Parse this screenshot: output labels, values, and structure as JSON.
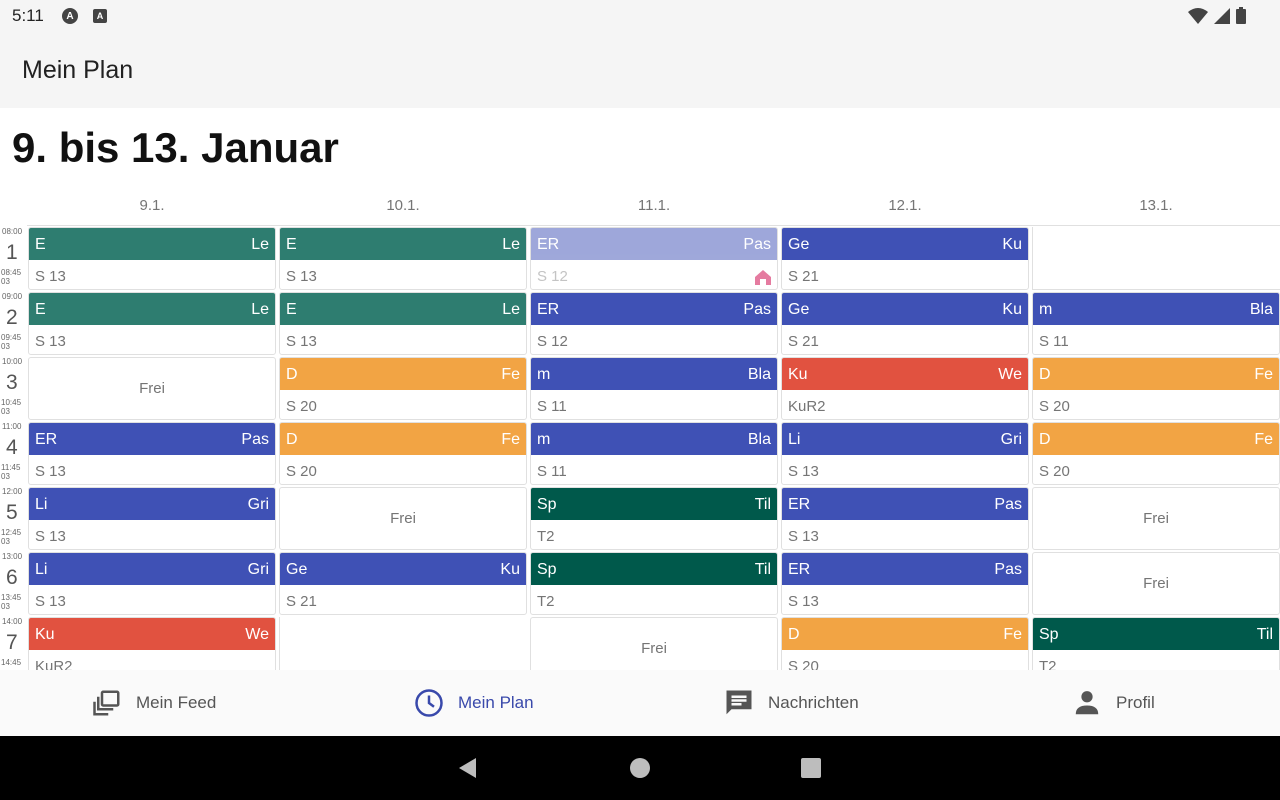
{
  "status_bar": {
    "time": "5:11",
    "notif_1": "A",
    "notif_2": "A"
  },
  "app_bar": {
    "title": "Mein Plan"
  },
  "week_title": "9. bis 13. Januar",
  "days": [
    "9.1.",
    "10.1.",
    "11.1.",
    "12.1.",
    "13.1."
  ],
  "periods": [
    {
      "num": "1",
      "start": "08:00",
      "end": "08:45",
      "end2": "03"
    },
    {
      "num": "2",
      "start": "09:00",
      "end": "09:45",
      "end2": "03"
    },
    {
      "num": "3",
      "start": "10:00",
      "end": "10:45",
      "end2": "03"
    },
    {
      "num": "4",
      "start": "11:00",
      "end": "11:45",
      "end2": "03"
    },
    {
      "num": "5",
      "start": "12:00",
      "end": "12:45",
      "end2": "03"
    },
    {
      "num": "6",
      "start": "13:00",
      "end": "13:45",
      "end2": "03"
    },
    {
      "num": "7",
      "start": "14:00",
      "end": "14:45",
      "end2": ""
    }
  ],
  "colors": {
    "teal": "#2e7d70",
    "indigo": "#3f51b5",
    "orange": "#f2a444",
    "red": "#e15240",
    "green": "#00594b",
    "flag": "#e57ba0"
  },
  "schedule": [
    [
      {
        "type": "lesson",
        "subject": "E",
        "teacher": "Le",
        "room": "S 13",
        "color": "teal"
      },
      {
        "type": "lesson",
        "subject": "E",
        "teacher": "Le",
        "room": "S 13",
        "color": "teal"
      },
      {
        "type": "frei",
        "label": "Frei"
      },
      {
        "type": "lesson",
        "subject": "ER",
        "teacher": "Pas",
        "room": "S 13",
        "color": "indigo"
      },
      {
        "type": "lesson",
        "subject": "Li",
        "teacher": "Gri",
        "room": "S 13",
        "color": "indigo"
      },
      {
        "type": "lesson",
        "subject": "Li",
        "teacher": "Gri",
        "room": "S 13",
        "color": "indigo"
      },
      {
        "type": "lesson",
        "subject": "Ku",
        "teacher": "We",
        "room": "KuR2",
        "color": "red"
      }
    ],
    [
      {
        "type": "lesson",
        "subject": "E",
        "teacher": "Le",
        "room": "S 13",
        "color": "teal"
      },
      {
        "type": "lesson",
        "subject": "E",
        "teacher": "Le",
        "room": "S 13",
        "color": "teal"
      },
      {
        "type": "lesson",
        "subject": "D",
        "teacher": "Fe",
        "room": "S 20",
        "color": "orange"
      },
      {
        "type": "lesson",
        "subject": "D",
        "teacher": "Fe",
        "room": "S 20",
        "color": "orange"
      },
      {
        "type": "frei",
        "label": "Frei"
      },
      {
        "type": "lesson",
        "subject": "Ge",
        "teacher": "Ku",
        "room": "S 21",
        "color": "indigo"
      },
      {
        "type": "empty"
      }
    ],
    [
      {
        "type": "lesson",
        "subject": "ER",
        "teacher": "Pas",
        "room": "S 12",
        "color": "indigo",
        "faded": true,
        "flag": true
      },
      {
        "type": "lesson",
        "subject": "ER",
        "teacher": "Pas",
        "room": "S 12",
        "color": "indigo"
      },
      {
        "type": "lesson",
        "subject": "m",
        "teacher": "Bla",
        "room": "S 11",
        "color": "indigo"
      },
      {
        "type": "lesson",
        "subject": "m",
        "teacher": "Bla",
        "room": "S 11",
        "color": "indigo"
      },
      {
        "type": "lesson",
        "subject": "Sp",
        "teacher": "Til",
        "room": "T2",
        "color": "green"
      },
      {
        "type": "lesson",
        "subject": "Sp",
        "teacher": "Til",
        "room": "T2",
        "color": "green"
      },
      {
        "type": "frei",
        "label": "Frei"
      }
    ],
    [
      {
        "type": "lesson",
        "subject": "Ge",
        "teacher": "Ku",
        "room": "S 21",
        "color": "indigo"
      },
      {
        "type": "lesson",
        "subject": "Ge",
        "teacher": "Ku",
        "room": "S 21",
        "color": "indigo"
      },
      {
        "type": "lesson",
        "subject": "Ku",
        "teacher": "We",
        "room": "KuR2",
        "color": "red"
      },
      {
        "type": "lesson",
        "subject": "Li",
        "teacher": "Gri",
        "room": "S 13",
        "color": "indigo"
      },
      {
        "type": "lesson",
        "subject": "ER",
        "teacher": "Pas",
        "room": "S 13",
        "color": "indigo"
      },
      {
        "type": "lesson",
        "subject": "ER",
        "teacher": "Pas",
        "room": "S 13",
        "color": "indigo"
      },
      {
        "type": "lesson",
        "subject": "D",
        "teacher": "Fe",
        "room": "S 20",
        "color": "orange"
      }
    ],
    [
      {
        "type": "empty"
      },
      {
        "type": "lesson",
        "subject": "m",
        "teacher": "Bla",
        "room": "S 11",
        "color": "indigo"
      },
      {
        "type": "lesson",
        "subject": "D",
        "teacher": "Fe",
        "room": "S 20",
        "color": "orange"
      },
      {
        "type": "lesson",
        "subject": "D",
        "teacher": "Fe",
        "room": "S 20",
        "color": "orange"
      },
      {
        "type": "frei",
        "label": "Frei"
      },
      {
        "type": "frei",
        "label": "Frei"
      },
      {
        "type": "lesson",
        "subject": "Sp",
        "teacher": "Til",
        "room": "T2",
        "color": "green"
      }
    ]
  ],
  "nav": [
    {
      "label": "Mein Feed",
      "icon": "feed-icon",
      "active": false
    },
    {
      "label": "Mein Plan",
      "icon": "clock-icon",
      "active": true
    },
    {
      "label": "Nachrichten",
      "icon": "chat-icon",
      "active": false
    },
    {
      "label": "Profil",
      "icon": "person-icon",
      "active": false
    }
  ]
}
